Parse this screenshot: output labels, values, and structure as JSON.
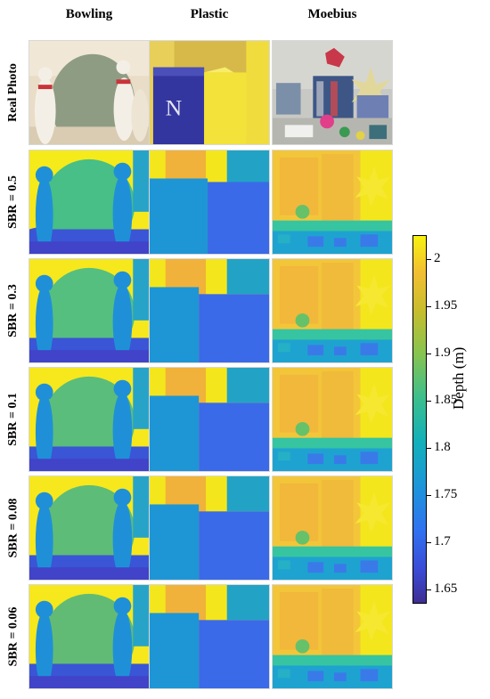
{
  "columns": [
    {
      "label": "Bowling"
    },
    {
      "label": "Plastic"
    },
    {
      "label": "Moebius"
    }
  ],
  "rows": [
    {
      "label": "Real Photo"
    },
    {
      "label": "SBR = 0.5"
    },
    {
      "label": "SBR = 0.3"
    },
    {
      "label": "SBR = 0.1"
    },
    {
      "label": "SBR = 0.08"
    },
    {
      "label": "SBR = 0.06"
    }
  ],
  "colorbar": {
    "title": "Depth (m)",
    "range": [
      1.635,
      2.025
    ],
    "ticks": [
      "2",
      "1.95",
      "1.9",
      "1.85",
      "1.8",
      "1.75",
      "1.7",
      "1.65"
    ],
    "tick_values": [
      2.0,
      1.95,
      1.9,
      1.85,
      1.8,
      1.75,
      1.7,
      1.65
    ],
    "colormap": "parula",
    "colors": {
      "low": "#3e2e93",
      "mid": "#12b0b9",
      "high": "#f7f20e"
    }
  }
}
